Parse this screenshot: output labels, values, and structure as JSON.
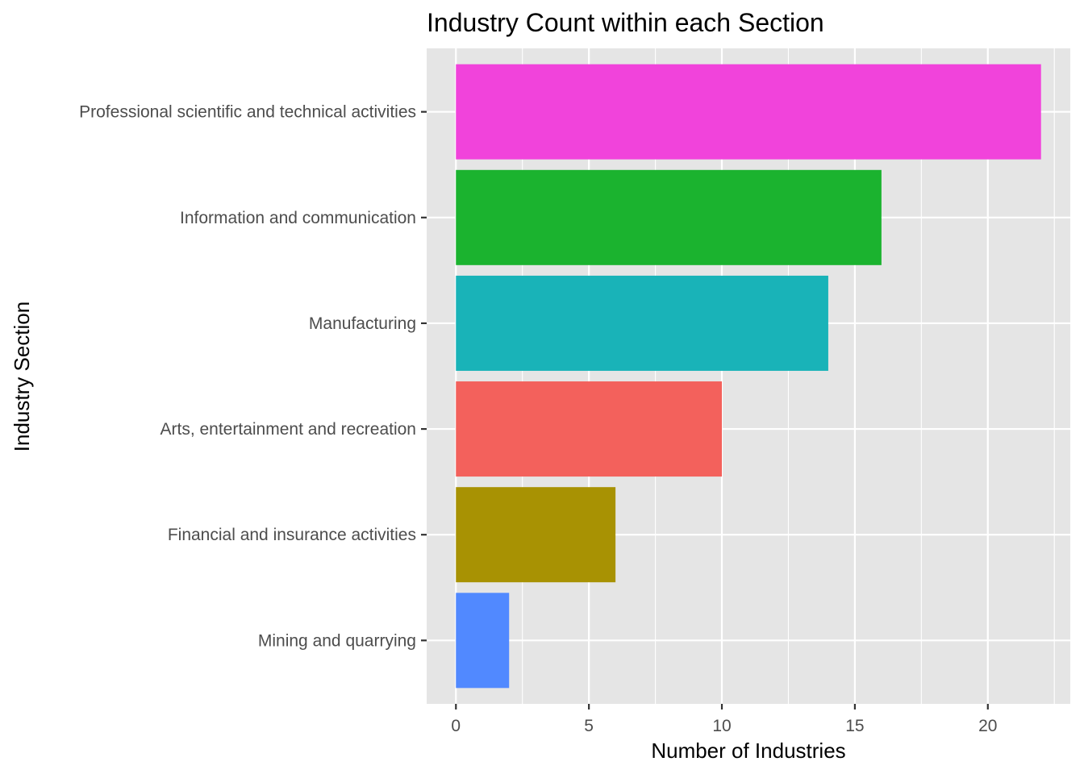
{
  "chart_data": {
    "type": "bar",
    "orientation": "horizontal",
    "title": "Industry Count within each Section",
    "xlabel": "Number of Industries",
    "ylabel": "Industry Section",
    "categories": [
      "Professional scientific and technical activities",
      "Information and communication",
      "Manufacturing",
      "Arts, entertainment and recreation",
      "Financial and insurance activities",
      "Mining and quarrying"
    ],
    "values": [
      22,
      16,
      14,
      10,
      6,
      2
    ],
    "colors": [
      "#F143DB",
      "#1BB32F",
      "#19B3B8",
      "#F3615C",
      "#A89203",
      "#5189FF"
    ],
    "xlim": [
      -1.1,
      23.1
    ],
    "xticks": [
      0,
      5,
      10,
      15,
      20
    ],
    "grid": true,
    "legend": "none",
    "panel_background": "#E5E5E5",
    "grid_color": "#FFFFFF"
  }
}
